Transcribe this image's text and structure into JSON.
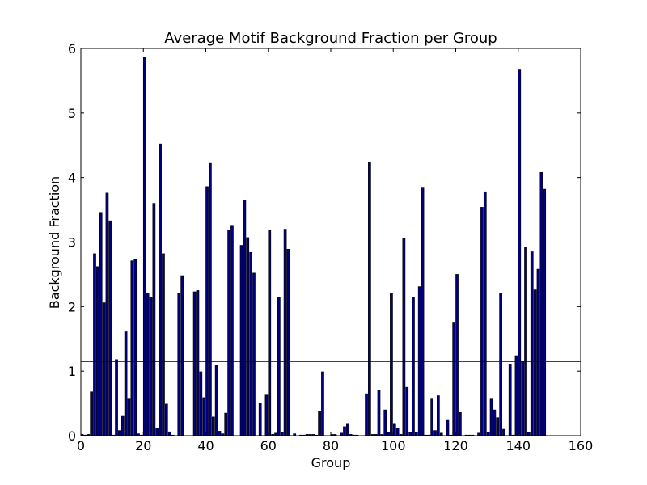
{
  "chart_data": {
    "type": "bar",
    "title": "Average Motif Background Fraction per Group",
    "xlabel": "Group",
    "ylabel": "Background Fraction",
    "x": [
      0,
      1,
      2,
      3,
      4,
      5,
      6,
      7,
      8,
      9,
      10,
      11,
      12,
      13,
      14,
      15,
      16,
      17,
      18,
      19,
      20,
      21,
      22,
      23,
      24,
      25,
      26,
      27,
      28,
      29,
      30,
      31,
      32,
      33,
      34,
      35,
      36,
      37,
      38,
      39,
      40,
      41,
      42,
      43,
      44,
      45,
      46,
      47,
      48,
      49,
      50,
      51,
      52,
      53,
      54,
      55,
      56,
      57,
      58,
      59,
      60,
      61,
      62,
      63,
      64,
      65,
      66,
      67,
      68,
      69,
      70,
      71,
      72,
      73,
      74,
      75,
      76,
      77,
      78,
      79,
      80,
      81,
      82,
      83,
      84,
      85,
      86,
      87,
      88,
      89,
      90,
      91,
      92,
      93,
      94,
      95,
      96,
      97,
      98,
      99,
      100,
      101,
      102,
      103,
      104,
      105,
      106,
      107,
      108,
      109,
      110,
      111,
      112,
      113,
      114,
      115,
      116,
      117,
      118,
      119,
      120,
      121,
      122,
      123,
      124,
      125,
      126,
      127,
      128,
      129,
      130,
      131,
      132,
      133,
      134,
      135,
      136,
      137,
      138,
      139,
      140,
      141,
      142,
      143,
      144,
      145,
      146,
      147,
      148
    ],
    "values": [
      0.02,
      0.01,
      0.02,
      0.68,
      2.82,
      2.62,
      3.46,
      2.06,
      3.76,
      3.33,
      0.01,
      1.18,
      0.08,
      0.3,
      1.61,
      0.58,
      2.71,
      2.73,
      0.03,
      0.01,
      5.87,
      2.2,
      2.15,
      3.6,
      0.12,
      4.52,
      2.82,
      0.49,
      0.06,
      0.01,
      0,
      2.21,
      2.48,
      0,
      0,
      0,
      2.23,
      2.25,
      0.99,
      0.59,
      3.86,
      4.22,
      0.29,
      1.09,
      0.07,
      0.03,
      0.35,
      3.19,
      3.26,
      0,
      0,
      2.95,
      3.65,
      3.07,
      2.84,
      2.52,
      0,
      0.51,
      0,
      0.63,
      3.19,
      0.02,
      0.04,
      2.15,
      0.05,
      3.2,
      2.89,
      0,
      0.03,
      0,
      0.01,
      0.01,
      0.02,
      0.02,
      0.02,
      0.01,
      0.38,
      0.99,
      0,
      0,
      0.02,
      0.02,
      0,
      0.04,
      0.14,
      0.19,
      0.02,
      0.01,
      0.01,
      0,
      0,
      0.65,
      4.24,
      0.02,
      0.02,
      0.7,
      0.02,
      0.4,
      0.05,
      2.21,
      0.19,
      0.12,
      0.02,
      3.06,
      0.75,
      0.05,
      2.15,
      0.05,
      2.31,
      3.85,
      0.01,
      0.01,
      0.58,
      0.08,
      0.62,
      0.04,
      0,
      0.25,
      0.01,
      1.76,
      2.5,
      0.36,
      0,
      0.01,
      0.01,
      0.01,
      0,
      0.04,
      3.54,
      3.78,
      0.05,
      0.58,
      0.4,
      0.28,
      2.21,
      0.1,
      0,
      1.11,
      0.01,
      1.24,
      5.68,
      1.15,
      2.92,
      0.05,
      2.85,
      2.26,
      2.58,
      4.08,
      3.82
    ],
    "color": "#00007f",
    "bar_width": 0.8,
    "hline": 1.15,
    "xlim": [
      0,
      160
    ],
    "xticks": [
      0,
      20,
      40,
      60,
      80,
      100,
      120,
      140,
      160
    ],
    "ylim": [
      0,
      6
    ],
    "yticks": [
      0,
      1,
      2,
      3,
      4,
      5,
      6
    ],
    "grid": false
  }
}
